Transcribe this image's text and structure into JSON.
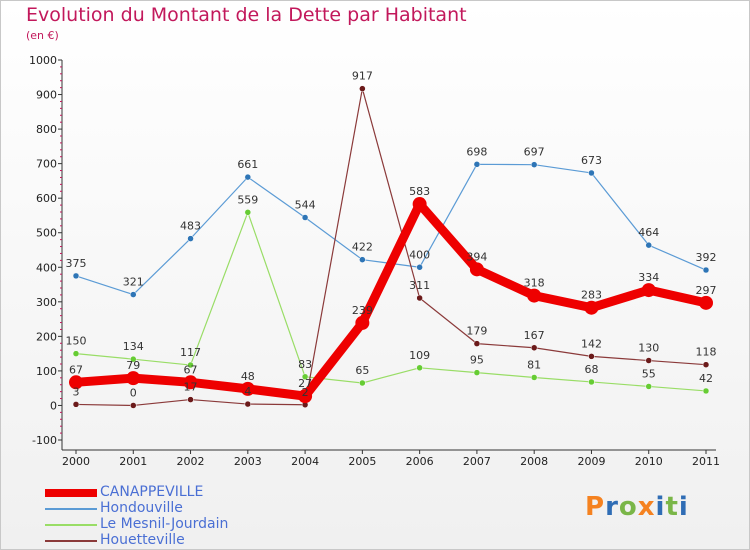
{
  "title": "Evolution du Montant de la Dette par Habitant",
  "unit_label": "(en €)",
  "logo": {
    "letters": [
      "P",
      "r",
      "o",
      "x",
      "i",
      "t",
      "i"
    ],
    "colors": [
      "#f58220",
      "#2f6db5",
      "#7ab648",
      "#f58220",
      "#2f6db5",
      "#7ab648",
      "#2f6db5"
    ]
  },
  "chart_data": {
    "type": "line",
    "x": [
      "2000",
      "2001",
      "2002",
      "2003",
      "2004",
      "2005",
      "2006",
      "2007",
      "2008",
      "2009",
      "2010",
      "2011"
    ],
    "ylim": [
      -100,
      1000
    ],
    "yticks": [
      "-100",
      "0",
      "100",
      "200",
      "300",
      "400",
      "500",
      "600",
      "700",
      "800",
      "900",
      "1000"
    ],
    "grid": false,
    "legend_position": "bottom-left",
    "series": [
      {
        "name": "Hondouville",
        "color": "#5b9bd5",
        "width": 1.2,
        "marker": "#2e75b6",
        "values": [
          375,
          321,
          483,
          661,
          544,
          422,
          400,
          698,
          697,
          673,
          464,
          392
        ],
        "labels": [
          "375",
          "321",
          "483",
          "661",
          "544",
          "422",
          "400",
          "698",
          "697",
          "673",
          "464",
          "392"
        ]
      },
      {
        "name": "Le Mesnil-Jourdain",
        "color": "#99dd66",
        "width": 1.2,
        "marker": "#66cc33",
        "values": [
          150,
          134,
          117,
          559,
          83,
          65,
          109,
          95,
          81,
          68,
          55,
          42
        ],
        "labels": [
          "150",
          "134",
          "117",
          "559",
          "83",
          "65",
          "109",
          "95",
          "81",
          "68",
          "55",
          "42"
        ]
      },
      {
        "name": "Houetteville",
        "color": "#8b3a3a",
        "width": 1.2,
        "marker": "#6b1a1a",
        "values": [
          3,
          0,
          17,
          4,
          2,
          917,
          311,
          179,
          167,
          142,
          130,
          118
        ],
        "labels": [
          "3",
          "0",
          "17",
          "4",
          "2",
          "917",
          "311",
          "179",
          "167",
          "142",
          "130",
          "118"
        ]
      },
      {
        "name": "CANAPPEVILLE",
        "color": "#ee0000",
        "width": 9,
        "marker": "#ee0000",
        "values": [
          67,
          79,
          67,
          48,
          27,
          239,
          583,
          394,
          318,
          283,
          334,
          297
        ],
        "labels": [
          "67",
          "79",
          "67",
          "48",
          "27",
          "239",
          "583",
          "394",
          "318",
          "283",
          "334",
          "297"
        ]
      }
    ],
    "legend": [
      "CANAPPEVILLE",
      "Hondouville",
      "Le Mesnil-Jourdain",
      "Houetteville"
    ]
  }
}
